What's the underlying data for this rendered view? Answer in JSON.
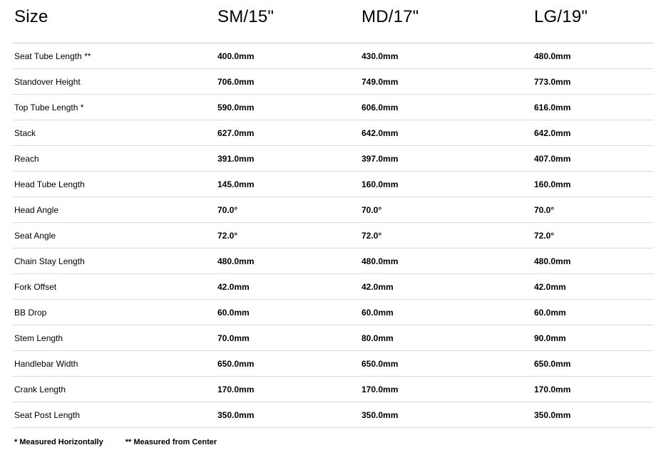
{
  "table": {
    "header_label": "Size",
    "columns": [
      "SM/15\"",
      "MD/17\"",
      "LG/19\""
    ],
    "rows": [
      {
        "label": "Seat Tube Length **",
        "values": [
          "400.0mm",
          "430.0mm",
          "480.0mm"
        ]
      },
      {
        "label": "Standover Height",
        "values": [
          "706.0mm",
          "749.0mm",
          "773.0mm"
        ]
      },
      {
        "label": "Top Tube Length *",
        "values": [
          "590.0mm",
          "606.0mm",
          "616.0mm"
        ]
      },
      {
        "label": "Stack",
        "values": [
          "627.0mm",
          "642.0mm",
          "642.0mm"
        ]
      },
      {
        "label": "Reach",
        "values": [
          "391.0mm",
          "397.0mm",
          "407.0mm"
        ]
      },
      {
        "label": "Head Tube Length",
        "values": [
          "145.0mm",
          "160.0mm",
          "160.0mm"
        ]
      },
      {
        "label": "Head Angle",
        "values": [
          "70.0°",
          "70.0°",
          "70.0°"
        ]
      },
      {
        "label": "Seat Angle",
        "values": [
          "72.0°",
          "72.0°",
          "72.0°"
        ]
      },
      {
        "label": "Chain Stay Length",
        "values": [
          "480.0mm",
          "480.0mm",
          "480.0mm"
        ]
      },
      {
        "label": "Fork Offset",
        "values": [
          "42.0mm",
          "42.0mm",
          "42.0mm"
        ]
      },
      {
        "label": "BB Drop",
        "values": [
          "60.0mm",
          "60.0mm",
          "60.0mm"
        ]
      },
      {
        "label": "Stem Length",
        "values": [
          "70.0mm",
          "80.0mm",
          "90.0mm"
        ]
      },
      {
        "label": "Handlebar Width",
        "values": [
          "650.0mm",
          "650.0mm",
          "650.0mm"
        ]
      },
      {
        "label": "Crank Length",
        "values": [
          "170.0mm",
          "170.0mm",
          "170.0mm"
        ]
      },
      {
        "label": "Seat Post Length",
        "values": [
          "350.0mm",
          "350.0mm",
          "350.0mm"
        ]
      }
    ]
  },
  "footnotes": [
    "* Measured Horizontally",
    "** Measured from Center"
  ],
  "style": {
    "background_color": "#ffffff",
    "text_color": "#000000",
    "border_color": "#d9d9d9",
    "header_font_size_pt": 18,
    "body_font_size_pt": 9,
    "footnote_font_size_pt": 8
  }
}
